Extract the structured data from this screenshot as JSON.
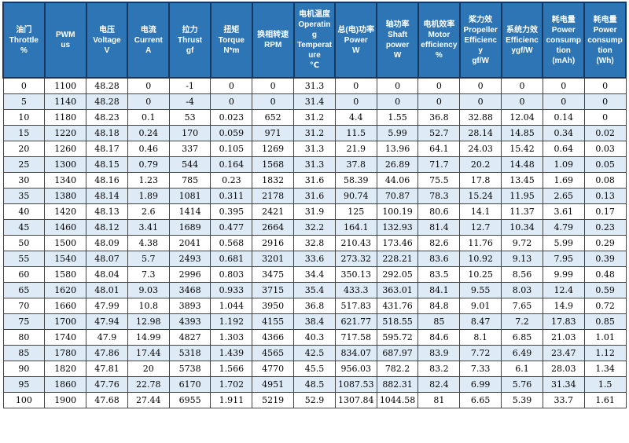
{
  "table": {
    "columns": [
      {
        "id": "throttle",
        "label": "油门\nThrottle\n%"
      },
      {
        "id": "pwm",
        "label": "PWM\nus"
      },
      {
        "id": "voltage",
        "label": "电压\nVoltage\nV"
      },
      {
        "id": "current",
        "label": "电流\nCurrent\nA"
      },
      {
        "id": "thrust",
        "label": "拉力\nThrust\ngf"
      },
      {
        "id": "torque",
        "label": "扭矩\nTorque\nN*m"
      },
      {
        "id": "rpm",
        "label": "换相转速\nRPM"
      },
      {
        "id": "temperature",
        "label": "电机温度\nOperating\nTemperature\n℃"
      },
      {
        "id": "total-power",
        "label": "总(电)功率 Power\nW"
      },
      {
        "id": "shaft-power",
        "label": "轴功率\nShaft\npower\nW"
      },
      {
        "id": "motor-efficiency",
        "label": "电机效率\nMotor\nefficiency %"
      },
      {
        "id": "propeller-efficiency",
        "label": "桨力效\nPropeller\nEfficiency\ngf/W"
      },
      {
        "id": "system-efficiency",
        "label": "系统力效\nEfficiencygf/W"
      },
      {
        "id": "consumption-mah",
        "label": "耗电量\nPower\nconsumption\n(mAh)"
      },
      {
        "id": "consumption-wh",
        "label": "耗电量\nPower\nconsumption\n(Wh)"
      }
    ],
    "rows": [
      [
        "0",
        "1100",
        "48.28",
        "0",
        "-1",
        "0",
        "0",
        "31.3",
        "0",
        "0",
        "0",
        "0",
        "0",
        "0",
        "0"
      ],
      [
        "5",
        "1140",
        "48.28",
        "0",
        "-4",
        "0",
        "0",
        "31.4",
        "0",
        "0",
        "0",
        "0",
        "0",
        "0",
        "0"
      ],
      [
        "10",
        "1180",
        "48.23",
        "0.1",
        "53",
        "0.023",
        "652",
        "31.2",
        "4.4",
        "1.55",
        "36.8",
        "32.88",
        "12.04",
        "0.14",
        "0"
      ],
      [
        "15",
        "1220",
        "48.18",
        "0.24",
        "170",
        "0.059",
        "971",
        "31.2",
        "11.5",
        "5.99",
        "52.7",
        "28.14",
        "14.85",
        "0.34",
        "0.02"
      ],
      [
        "20",
        "1260",
        "48.17",
        "0.46",
        "337",
        "0.105",
        "1269",
        "31.3",
        "21.9",
        "13.96",
        "64.1",
        "24.03",
        "15.42",
        "0.64",
        "0.03"
      ],
      [
        "25",
        "1300",
        "48.15",
        "0.79",
        "544",
        "0.164",
        "1568",
        "31.3",
        "37.8",
        "26.89",
        "71.7",
        "20.2",
        "14.48",
        "1.09",
        "0.05"
      ],
      [
        "30",
        "1340",
        "48.16",
        "1.23",
        "785",
        "0.23",
        "1832",
        "31.6",
        "58.39",
        "44.06",
        "75.5",
        "17.8",
        "13.45",
        "1.69",
        "0.08"
      ],
      [
        "35",
        "1380",
        "48.14",
        "1.89",
        "1081",
        "0.311",
        "2178",
        "31.6",
        "90.74",
        "70.87",
        "78.3",
        "15.24",
        "11.95",
        "2.65",
        "0.13"
      ],
      [
        "40",
        "1420",
        "48.13",
        "2.6",
        "1414",
        "0.395",
        "2421",
        "31.9",
        "125",
        "100.19",
        "80.6",
        "14.1",
        "11.37",
        "3.61",
        "0.17"
      ],
      [
        "45",
        "1460",
        "48.12",
        "3.41",
        "1689",
        "0.477",
        "2664",
        "32.2",
        "164.1",
        "132.93",
        "81.4",
        "12.7",
        "10.34",
        "4.79",
        "0.23"
      ],
      [
        "50",
        "1500",
        "48.09",
        "4.38",
        "2041",
        "0.568",
        "2916",
        "32.8",
        "210.43",
        "173.46",
        "82.6",
        "11.76",
        "9.72",
        "5.99",
        "0.29"
      ],
      [
        "55",
        "1540",
        "48.07",
        "5.7",
        "2493",
        "0.681",
        "3201",
        "33.6",
        "273.32",
        "228.21",
        "83.6",
        "10.92",
        "9.13",
        "7.95",
        "0.39"
      ],
      [
        "60",
        "1580",
        "48.04",
        "7.3",
        "2996",
        "0.803",
        "3475",
        "34.4",
        "350.13",
        "292.05",
        "83.5",
        "10.25",
        "8.56",
        "9.99",
        "0.48"
      ],
      [
        "65",
        "1620",
        "48.01",
        "9.03",
        "3468",
        "0.933",
        "3715",
        "35.4",
        "433.3",
        "363.01",
        "84.1",
        "9.55",
        "8.03",
        "12.4",
        "0.59"
      ],
      [
        "70",
        "1660",
        "47.99",
        "10.8",
        "3893",
        "1.044",
        "3950",
        "36.8",
        "517.83",
        "431.76",
        "84.8",
        "9.01",
        "7.65",
        "14.9",
        "0.72"
      ],
      [
        "75",
        "1700",
        "47.94",
        "12.98",
        "4393",
        "1.192",
        "4155",
        "38.4",
        "621.77",
        "518.55",
        "85",
        "8.47",
        "7.2",
        "17.83",
        "0.85"
      ],
      [
        "80",
        "1740",
        "47.9",
        "14.99",
        "4827",
        "1.303",
        "4366",
        "40.3",
        "717.58",
        "595.72",
        "84.6",
        "8.1",
        "6.85",
        "21.03",
        "1.01"
      ],
      [
        "85",
        "1780",
        "47.86",
        "17.44",
        "5318",
        "1.439",
        "4565",
        "42.5",
        "834.07",
        "687.97",
        "83.9",
        "7.72",
        "6.49",
        "23.47",
        "1.12"
      ],
      [
        "90",
        "1820",
        "47.81",
        "20",
        "5738",
        "1.566",
        "4770",
        "45.5",
        "956.03",
        "782.2",
        "83.2",
        "7.33",
        "6.1",
        "28.03",
        "1.34"
      ],
      [
        "95",
        "1860",
        "47.76",
        "22.78",
        "6170",
        "1.702",
        "4951",
        "48.5",
        "1087.53",
        "882.31",
        "82.4",
        "6.99",
        "5.76",
        "31.34",
        "1.5"
      ],
      [
        "100",
        "1900",
        "47.68",
        "27.44",
        "6955",
        "1.911",
        "5219",
        "52.9",
        "1307.84",
        "1044.58",
        "81",
        "6.65",
        "5.39",
        "33.7",
        "1.61"
      ]
    ]
  },
  "colors": {
    "header_bg": "#2E75B6",
    "header_border": "#17375E",
    "header_text": "#FFFFFF",
    "body_border": "#444444",
    "row_stripe": "#DEEBF7",
    "row_plain": "#FFFFFF",
    "body_text": "#000000"
  }
}
